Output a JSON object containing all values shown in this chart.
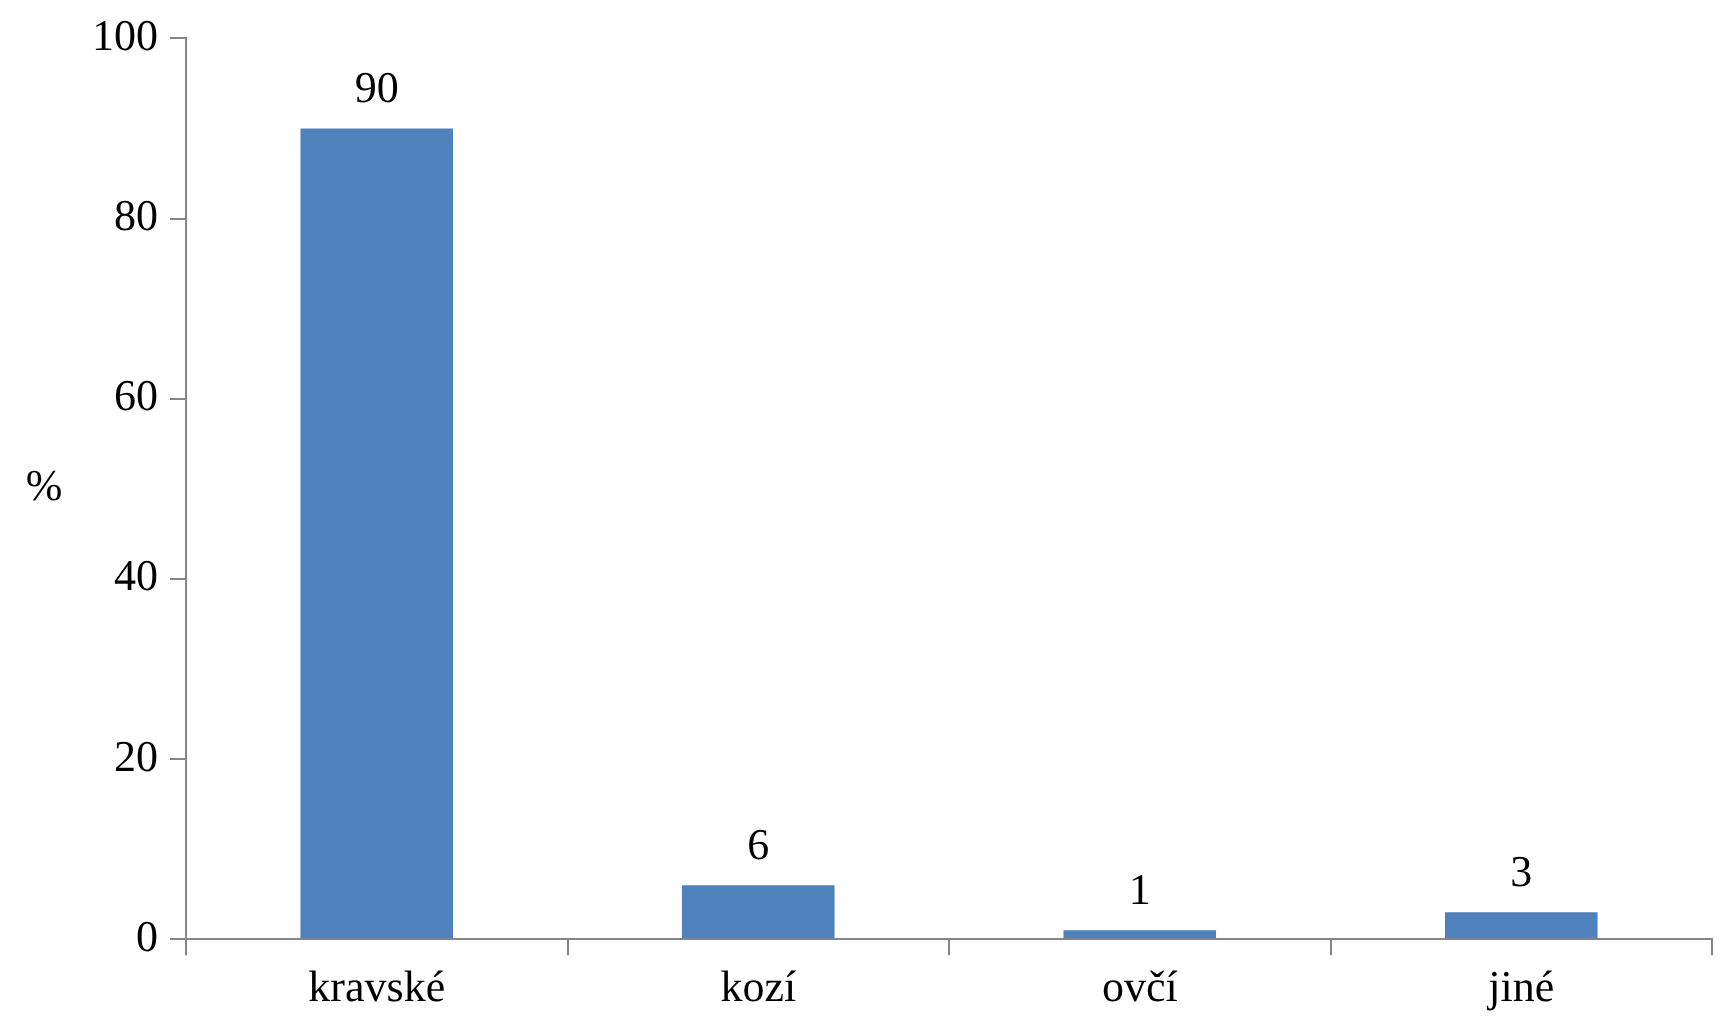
{
  "chart_data": {
    "type": "bar",
    "ylabel": "%",
    "categories": [
      "kravské",
      "kozí",
      "ovčí",
      "jiné"
    ],
    "values": [
      90,
      6,
      1,
      3
    ],
    "color": "#4f81bd",
    "ylim": [
      0,
      100
    ],
    "yticks": [
      0,
      20,
      40,
      60,
      80,
      100
    ],
    "grid": false,
    "legend": false,
    "data_labels": true
  }
}
